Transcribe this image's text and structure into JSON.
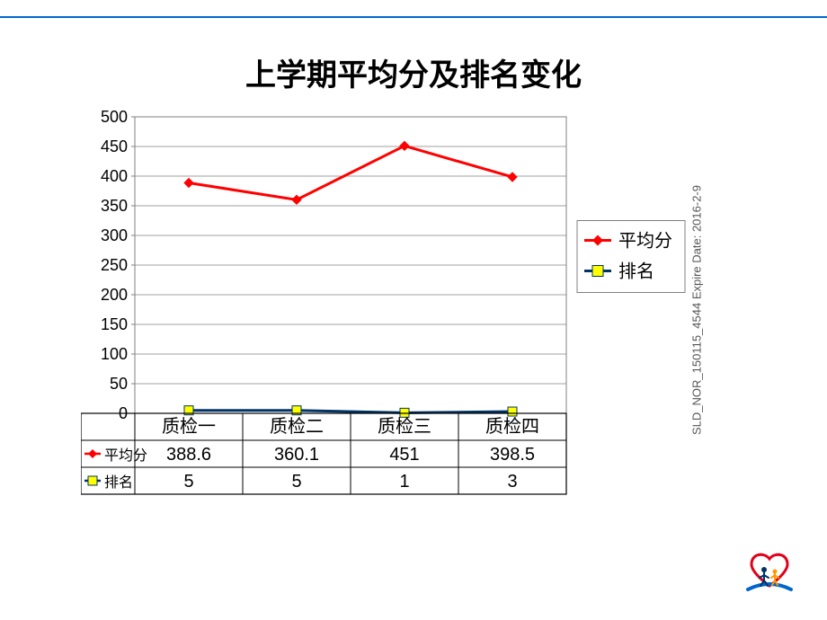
{
  "title": "上学期平均分及排名变化",
  "side_text": "SLD_NOR_150115_4544 Expire Date: 2016-2-9",
  "chart": {
    "type": "line",
    "categories": [
      "质检一",
      "质检二",
      "质检三",
      "质检四"
    ],
    "series": [
      {
        "name": "平均分",
        "color": "#ff0000",
        "marker": "diamond",
        "values": [
          388.6,
          360.1,
          451,
          398.5
        ]
      },
      {
        "name": "排名",
        "color": "#003366",
        "marker": "square_yellow",
        "values": [
          5,
          5,
          1,
          3
        ]
      }
    ],
    "ylim": [
      0,
      500
    ],
    "ytick_step": 50,
    "tick_label_fontsize": 18,
    "category_fontsize": 20,
    "legend_fontsize": 20,
    "legend_item_colors": [
      "#ff0000",
      "#003366"
    ],
    "legend_marker_fill": [
      "#ff0000",
      "#ffff00"
    ],
    "line_width": 3,
    "marker_size": 10,
    "plot_bg": "#ffffff",
    "grid_color": "#808080",
    "axis_color": "#808080",
    "table_border_color": "#000000",
    "table_header_labels": [
      "平均分",
      "排名"
    ],
    "table_font_size": 20
  },
  "logo_colors": {
    "heart": "#e2001a",
    "wave": "#0066cc",
    "fig1": "#003366",
    "fig2": "#ff9900"
  }
}
